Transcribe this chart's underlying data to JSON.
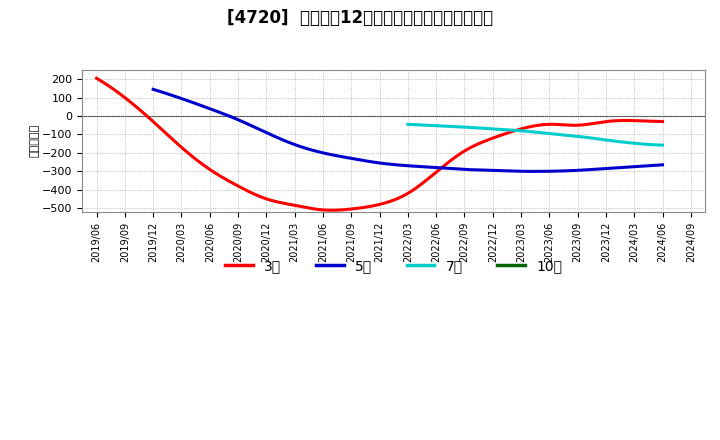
{
  "title": "[4720]  経常利益12か月移動合計の平均値の推移",
  "ylabel": "（百万円）",
  "ylim": [
    -520,
    250
  ],
  "yticks": [
    -500,
    -400,
    -300,
    -200,
    -100,
    0,
    100,
    200
  ],
  "background_color": "#ffffff",
  "plot_bg_color": "#ffffff",
  "grid_color": "#aaaaaa",
  "series_3": {
    "color": "#ff0000",
    "x": [
      0,
      1,
      2,
      3,
      4,
      5,
      6,
      7,
      8,
      9,
      10,
      11,
      12,
      13,
      14,
      15,
      16,
      17,
      18,
      19,
      20
    ],
    "y": [
      205,
      100,
      -30,
      -170,
      -290,
      -380,
      -450,
      -485,
      -510,
      -505,
      -480,
      -420,
      -305,
      -190,
      -120,
      -70,
      -45,
      -50,
      -30,
      -25,
      -30
    ]
  },
  "series_5": {
    "color": "#0000cc",
    "x": [
      2,
      3,
      4,
      5,
      6,
      7,
      8,
      9,
      10,
      11,
      12,
      13,
      14,
      15,
      16,
      17,
      18,
      19,
      20
    ],
    "y": [
      145,
      95,
      40,
      -20,
      -90,
      -155,
      -200,
      -230,
      -255,
      -270,
      -280,
      -290,
      -295,
      -300,
      -300,
      -295,
      -285,
      -275,
      -265
    ]
  },
  "series_7": {
    "color": "#00cccc",
    "x": [
      11,
      12,
      13,
      14,
      15,
      16,
      17,
      18,
      19,
      20
    ],
    "y": [
      -45,
      -52,
      -60,
      -70,
      -80,
      -95,
      -110,
      -130,
      -148,
      -158
    ]
  },
  "series_10": {
    "color": "#006600",
    "x": [],
    "y": []
  },
  "x_labels": [
    "2019/06",
    "2019/09",
    "2019/12",
    "2020/03",
    "2020/06",
    "2020/09",
    "2020/12",
    "2021/03",
    "2021/06",
    "2021/09",
    "2021/12",
    "2022/03",
    "2022/06",
    "2022/09",
    "2022/12",
    "2023/03",
    "2023/06",
    "2023/09",
    "2023/12",
    "2024/03",
    "2024/06",
    "2024/09"
  ],
  "legend_labels": [
    "3年",
    "5年",
    "7年",
    "10年"
  ],
  "legend_colors": [
    "#ff0000",
    "#0000cc",
    "#00cccc",
    "#006600"
  ],
  "title_fontsize": 12,
  "tick_fontsize": 7,
  "ylabel_fontsize": 8
}
